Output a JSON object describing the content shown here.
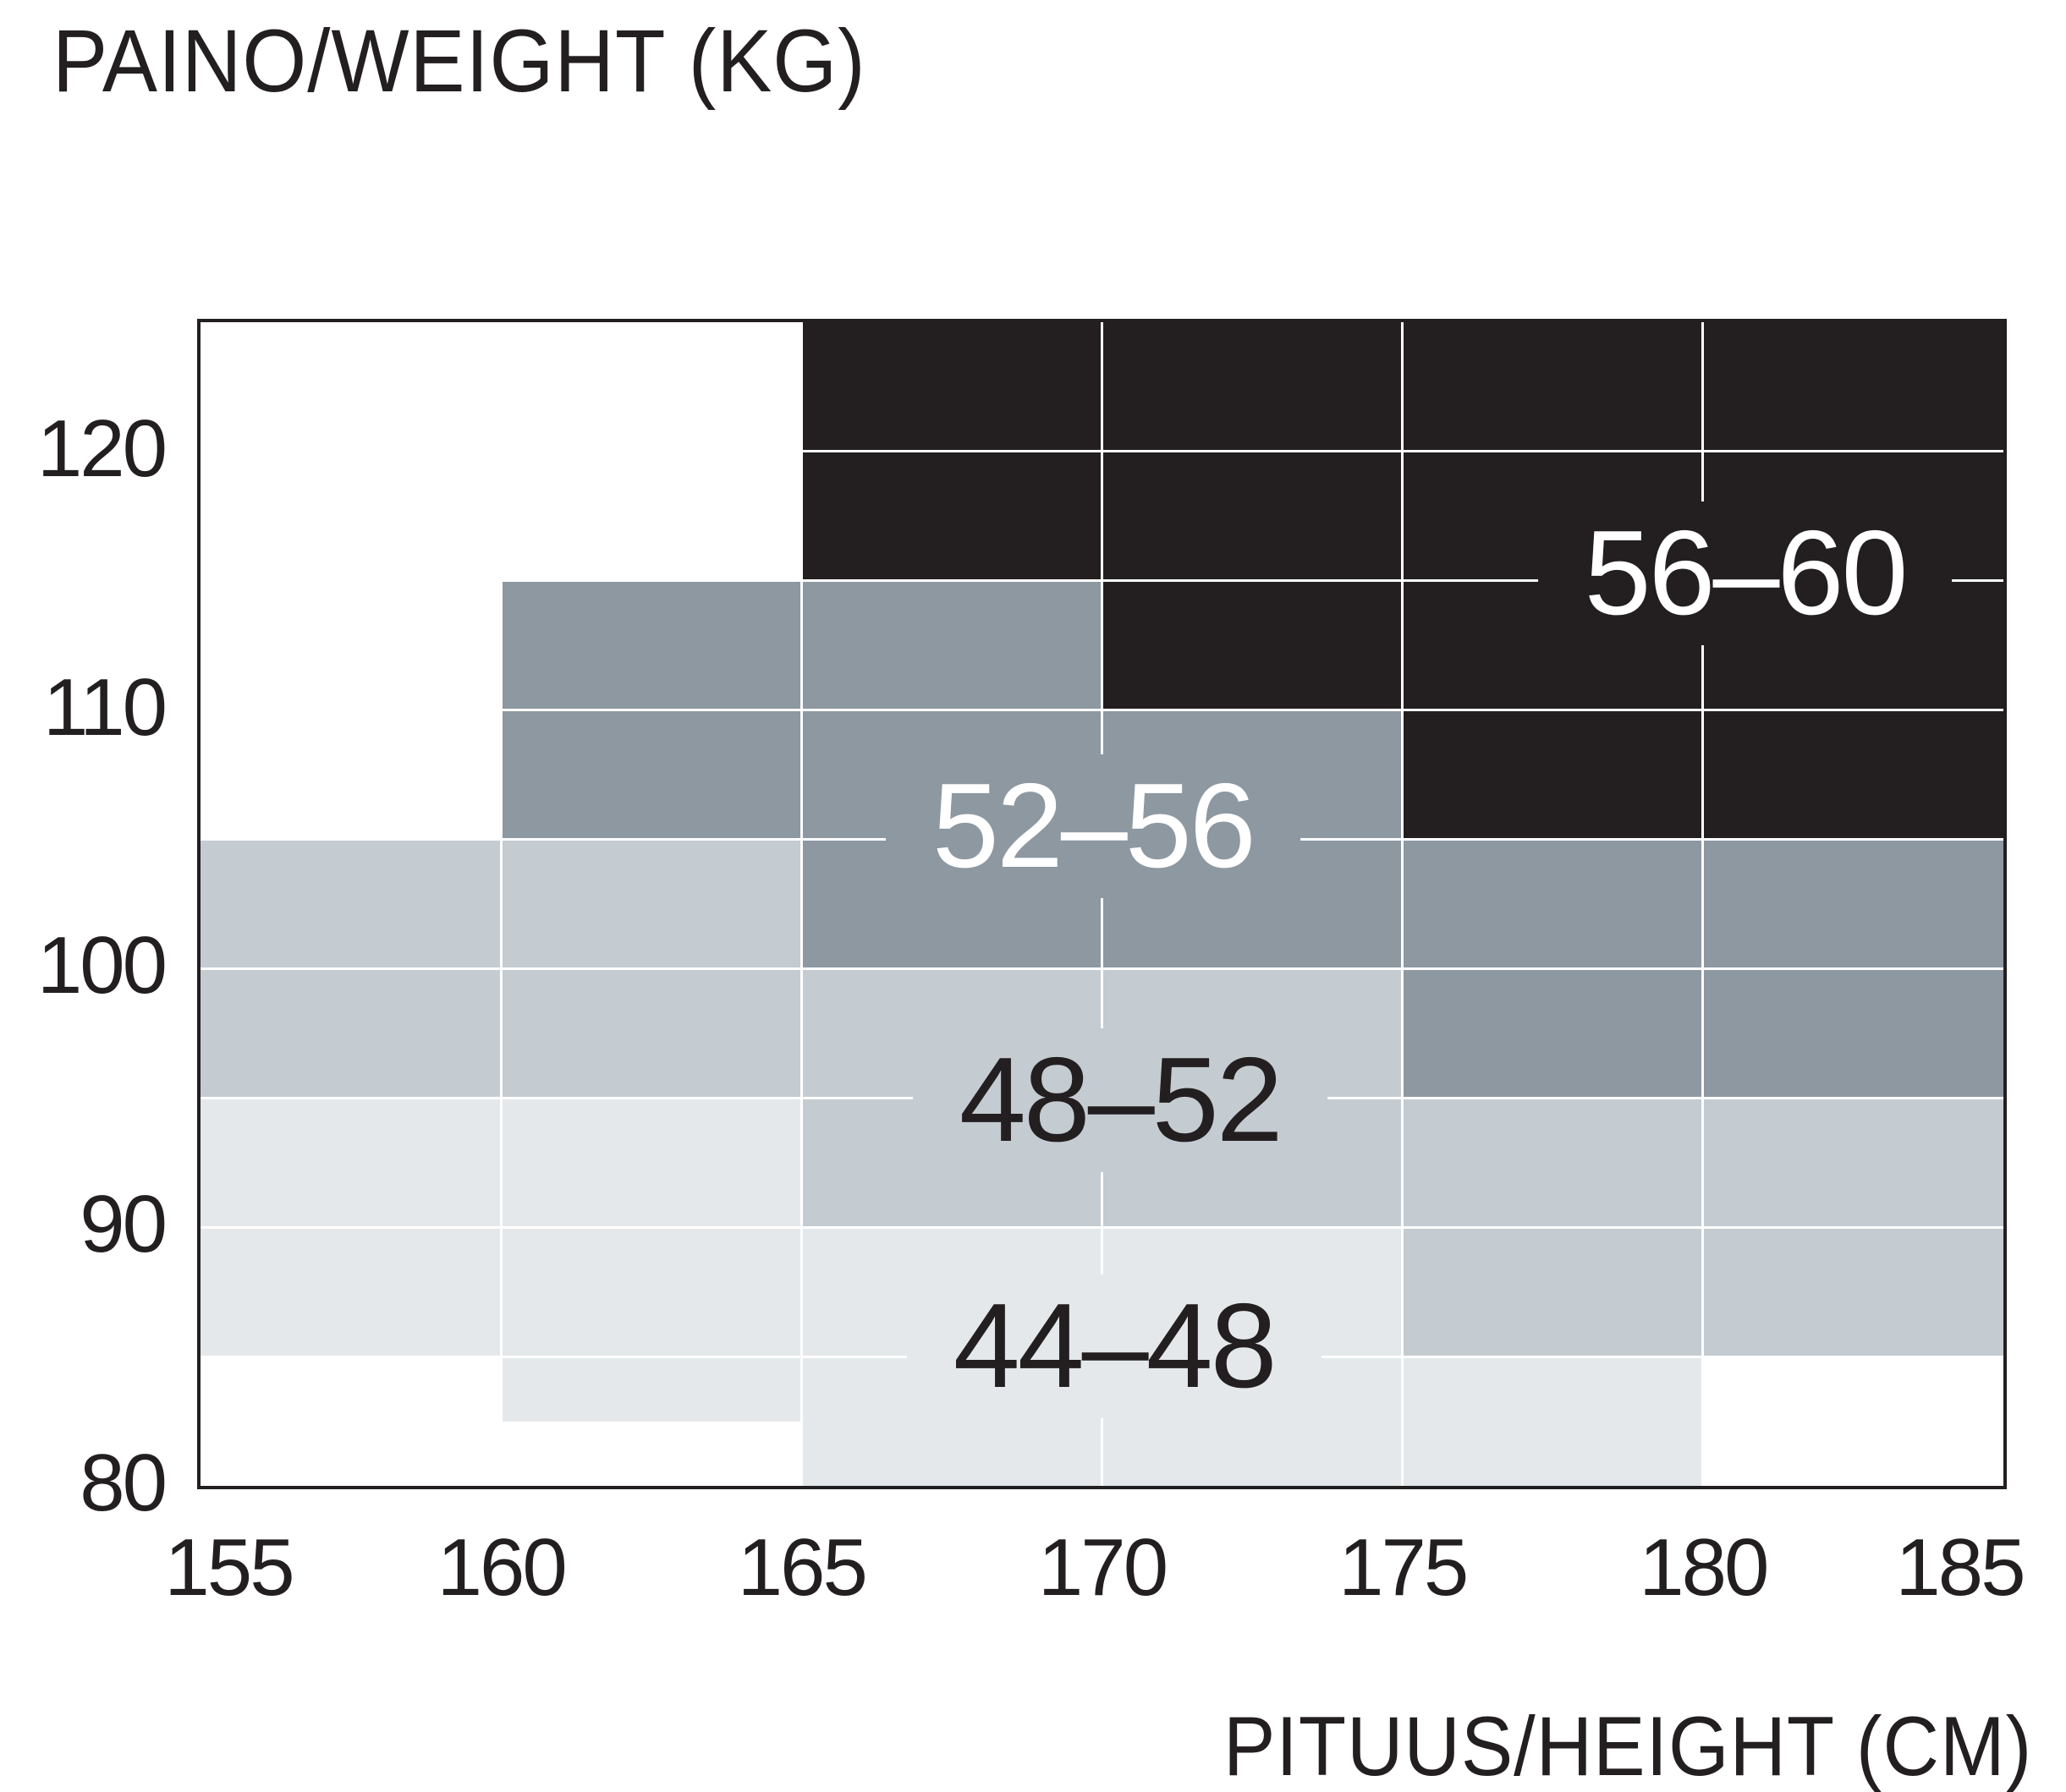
{
  "page": {
    "background": "#ffffff",
    "text_color": "#231f20"
  },
  "chart_data": {
    "type": "heatmap",
    "title": "PAINO/WEIGHT (KG)",
    "xlabel": "PITUUS/HEIGHT (CM)",
    "x_unit": "CM",
    "y_unit": "KG",
    "x_ticks": [
      155,
      160,
      165,
      170,
      175,
      180,
      185
    ],
    "y_ticks": [
      120,
      110,
      100,
      90,
      80
    ],
    "x_range": [
      155,
      185
    ],
    "y_range": [
      80,
      125
    ],
    "x_gridlines": [
      160,
      165,
      170,
      175,
      180
    ],
    "y_gridlines": [
      85,
      90,
      95,
      100,
      105,
      110,
      115,
      120
    ],
    "grid_on": true,
    "grid_color": "#ffffff",
    "border_color": "#231f20",
    "legend_position": "none",
    "regions": [
      {
        "label": "56–60",
        "color": "#231f20",
        "text_color": "#ffffff",
        "label_pos": {
          "x_cm": 180.7,
          "y_kg": 115.3
        },
        "rects": [
          {
            "x": [
              165,
              185
            ],
            "y": [
              115,
              125
            ]
          },
          {
            "x": [
              170,
              185
            ],
            "y": [
              110,
              115
            ]
          },
          {
            "x": [
              175,
              185
            ],
            "y": [
              105,
              110
            ]
          }
        ]
      },
      {
        "label": "52–56",
        "color": "#8d98a1",
        "text_color": "#ffffff",
        "label_pos": {
          "x_cm": 169.85,
          "y_kg": 105.5
        },
        "rects": [
          {
            "x": [
              160,
              170
            ],
            "y": [
              110,
              115
            ]
          },
          {
            "x": [
              160,
              175
            ],
            "y": [
              105,
              110
            ]
          },
          {
            "x": [
              165,
              185
            ],
            "y": [
              100,
              105
            ]
          },
          {
            "x": [
              175,
              185
            ],
            "y": [
              95,
              100
            ]
          }
        ]
      },
      {
        "label": "48–52",
        "color": "#c4cbd1",
        "text_color": "#231f20",
        "label_pos": {
          "x_cm": 170.3,
          "y_kg": 94.9
        },
        "rects": [
          {
            "x": [
              155,
              165
            ],
            "y": [
              100,
              105
            ]
          },
          {
            "x": [
              155,
              175
            ],
            "y": [
              95,
              100
            ]
          },
          {
            "x": [
              165,
              185
            ],
            "y": [
              90,
              95
            ]
          },
          {
            "x": [
              175,
              185
            ],
            "y": [
              85,
              90
            ]
          }
        ]
      },
      {
        "label": "44–48",
        "color": "#e4e8eb",
        "text_color": "#231f20",
        "label_pos": {
          "x_cm": 170.2,
          "y_kg": 85.4
        },
        "rects": [
          {
            "x": [
              155,
              165
            ],
            "y": [
              90,
              95
            ]
          },
          {
            "x": [
              155,
              175
            ],
            "y": [
              85,
              90
            ]
          },
          {
            "x": [
              160,
              165
            ],
            "y": [
              82.5,
              85
            ]
          },
          {
            "x": [
              165,
              180
            ],
            "y": [
              80,
              85
            ]
          }
        ]
      }
    ]
  }
}
